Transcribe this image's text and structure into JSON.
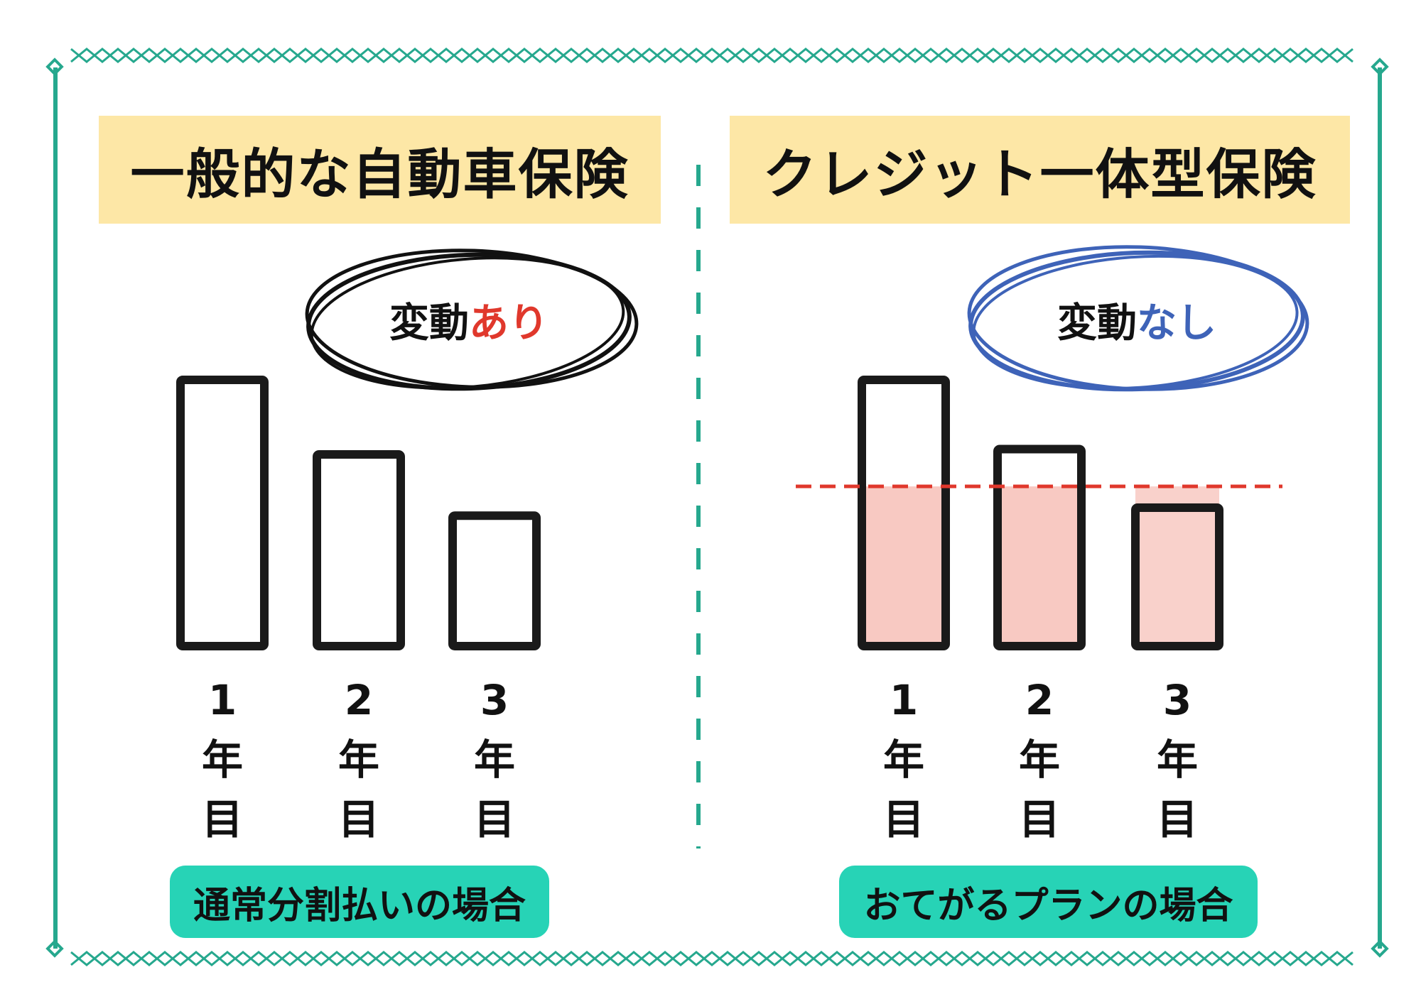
{
  "colors": {
    "frame": "#26a88e",
    "title_band": "#fde7a6",
    "caption_pill": "#27d3b6",
    "accent_red": "#e0382c",
    "accent_blue": "#3e63b8",
    "fill_pink": "#f8c9c2",
    "ink": "#1a1a1a"
  },
  "left_panel": {
    "title": "一般的な自動車保険",
    "bubble_prefix": "変動",
    "bubble_accent": "あり",
    "caption": "通常分割払いの場合",
    "chart_data": {
      "type": "bar",
      "categories": [
        "1年目",
        "2年目",
        "3年目"
      ],
      "values": [
        100,
        72,
        49
      ]
    },
    "year_labels": [
      {
        "num": "1",
        "nen": "年",
        "me": "目"
      },
      {
        "num": "2",
        "nen": "年",
        "me": "目"
      },
      {
        "num": "3",
        "nen": "年",
        "me": "目"
      }
    ]
  },
  "right_panel": {
    "title": "クレジット一体型保険",
    "bubble_prefix": "変動",
    "bubble_accent": "なし",
    "caption": "おてがるプランの場合",
    "chart_data": {
      "type": "bar",
      "categories": [
        "1年目",
        "2年目",
        "3年目"
      ],
      "values": [
        100,
        74,
        52
      ],
      "fixed_level": 60
    },
    "year_labels": [
      {
        "num": "1",
        "nen": "年",
        "me": "目"
      },
      {
        "num": "2",
        "nen": "年",
        "me": "目"
      },
      {
        "num": "3",
        "nen": "年",
        "me": "目"
      }
    ]
  }
}
